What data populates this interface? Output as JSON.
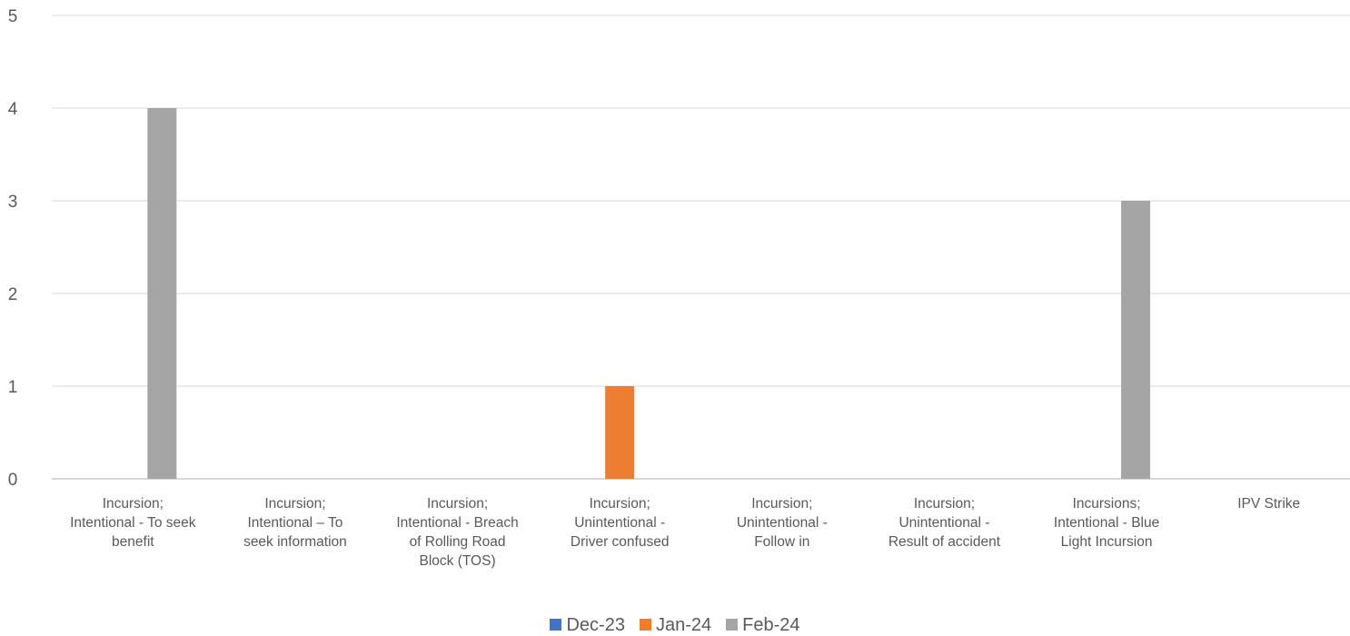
{
  "chart_data": {
    "type": "bar",
    "title": "",
    "xlabel": "",
    "ylabel": "",
    "ylim": [
      0,
      5
    ],
    "yticks": [
      0,
      1,
      2,
      3,
      4,
      5
    ],
    "grid": true,
    "legend_position": "bottom",
    "categories": [
      [
        "Incursion;",
        "Intentional - To seek",
        "benefit"
      ],
      [
        "Incursion;",
        "Intentional – To",
        "seek information"
      ],
      [
        "Incursion;",
        "Intentional - Breach",
        "of Rolling Road",
        "Block (TOS)"
      ],
      [
        "Incursion;",
        "Unintentional -",
        "Driver confused"
      ],
      [
        "Incursion;",
        "Unintentional -",
        "Follow in"
      ],
      [
        "Incursion;",
        "Unintentional -",
        "Result of accident"
      ],
      [
        "Incursions;",
        "Intentional - Blue",
        "Light Incursion"
      ],
      [
        "IPV Strike"
      ]
    ],
    "series": [
      {
        "name": "Dec-23",
        "color": "#4472C4",
        "values": [
          0,
          0,
          0,
          0,
          0,
          0,
          0,
          0
        ]
      },
      {
        "name": "Jan-24",
        "color": "#ED7D31",
        "values": [
          0,
          0,
          0,
          1,
          0,
          0,
          0,
          0
        ]
      },
      {
        "name": "Feb-24",
        "color": "#A5A5A5",
        "values": [
          4,
          0,
          0,
          0,
          0,
          0,
          3,
          0
        ]
      }
    ]
  }
}
